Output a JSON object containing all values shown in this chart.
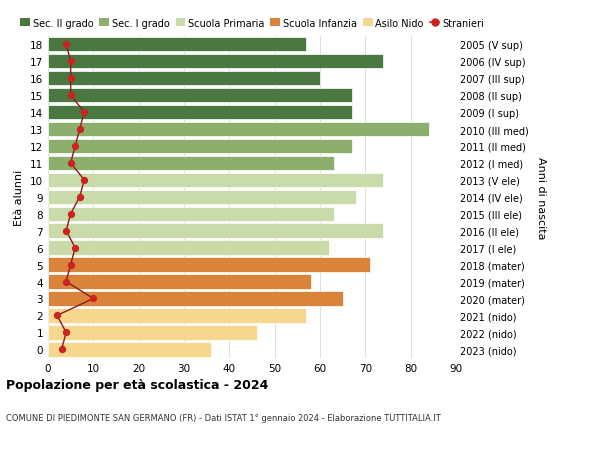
{
  "ages": [
    0,
    1,
    2,
    3,
    4,
    5,
    6,
    7,
    8,
    9,
    10,
    11,
    12,
    13,
    14,
    15,
    16,
    17,
    18
  ],
  "years_labels": [
    "2023 (nido)",
    "2022 (nido)",
    "2021 (nido)",
    "2020 (mater)",
    "2019 (mater)",
    "2018 (mater)",
    "2017 (I ele)",
    "2016 (II ele)",
    "2015 (III ele)",
    "2014 (IV ele)",
    "2013 (V ele)",
    "2012 (I med)",
    "2011 (II med)",
    "2010 (III med)",
    "2009 (I sup)",
    "2008 (II sup)",
    "2007 (III sup)",
    "2006 (IV sup)",
    "2005 (V sup)"
  ],
  "bar_values": [
    36,
    46,
    57,
    65,
    58,
    71,
    62,
    74,
    63,
    68,
    74,
    63,
    67,
    84,
    67,
    67,
    60,
    74,
    57
  ],
  "bar_colors": [
    "#f5d78e",
    "#f5d78e",
    "#f5d78e",
    "#d9843a",
    "#d9843a",
    "#d9843a",
    "#c8dba8",
    "#c8dba8",
    "#c8dba8",
    "#c8dba8",
    "#c8dba8",
    "#8daf6e",
    "#8daf6e",
    "#8daf6e",
    "#4a7840",
    "#4a7840",
    "#4a7840",
    "#4a7840",
    "#4a7840"
  ],
  "stranieri_x": [
    3,
    4,
    2,
    10,
    4,
    5,
    6,
    4,
    5,
    7,
    8,
    5,
    6,
    7,
    8,
    5,
    5,
    5,
    4
  ],
  "legend_labels": [
    "Sec. II grado",
    "Sec. I grado",
    "Scuola Primaria",
    "Scuola Infanzia",
    "Asilo Nido",
    "Stranieri"
  ],
  "legend_colors": [
    "#4a7840",
    "#8daf6e",
    "#c8dba8",
    "#d9843a",
    "#f5d78e",
    "#cc2222"
  ],
  "ylabel_left": "Età alunni",
  "ylabel_right": "Anni di nascita",
  "title": "Popolazione per età scolastica - 2024",
  "subtitle": "COMUNE DI PIEDIMONTE SAN GERMANO (FR) - Dati ISTAT 1° gennaio 2024 - Elaborazione TUTTITALIA.IT",
  "xlim": [
    0,
    90
  ],
  "background_color": "#ffffff",
  "grid_color": "#dddddd"
}
